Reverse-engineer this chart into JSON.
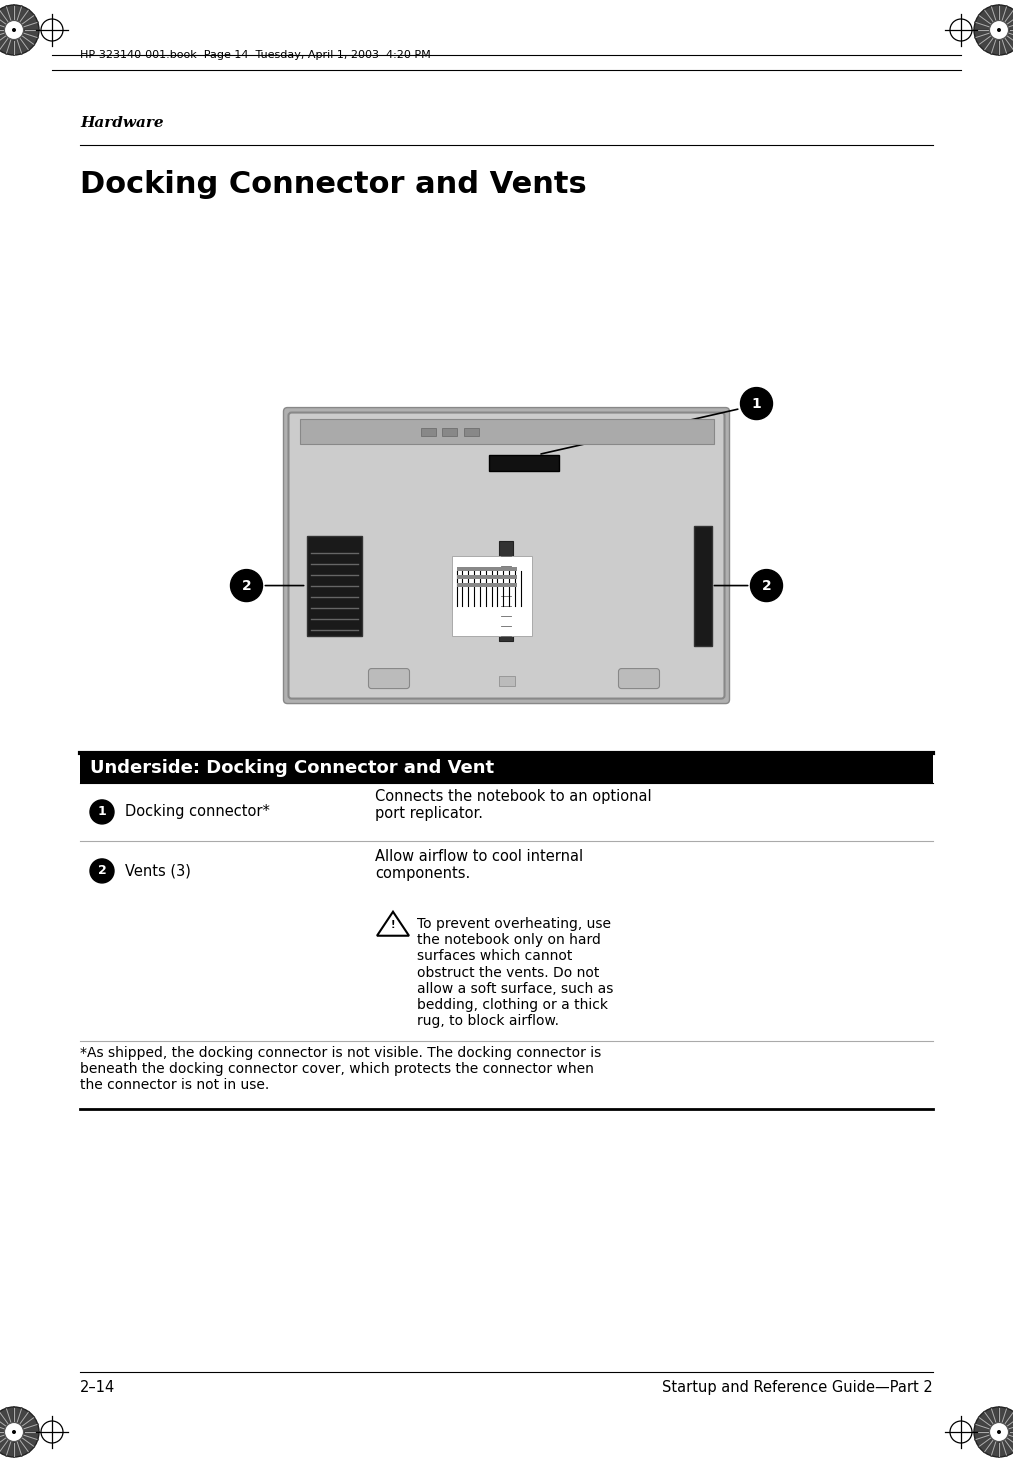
{
  "page_bg": "#ffffff",
  "header_text": "HP-323140-001.book  Page 14  Tuesday, April 1, 2003  4:20 PM",
  "section_label": "Hardware",
  "main_title": "Docking Connector and Vents",
  "table_header": "Underside: Docking Connector and Vent",
  "row1_label": "Docking connector*",
  "row1_desc": "Connects the notebook to an optional\nport replicator.",
  "row2_label": "Vents (3)",
  "row2_desc": "Allow airflow to cool internal\ncomponents.",
  "warning_text": "To prevent overheating, use\nthe notebook only on hard\nsurfaces which cannot\nobstruct the vents. Do not\nallow a soft surface, such as\nbedding, clothing or a thick\nrug, to block airflow.",
  "footnote": "*As shipped, the docking connector is not visible. The docking connector is\nbeneath the docking connector cover, which protects the connector when\nthe connector is not in use.",
  "footer_left": "2–14",
  "footer_right": "Startup and Reference Guide—Part 2"
}
